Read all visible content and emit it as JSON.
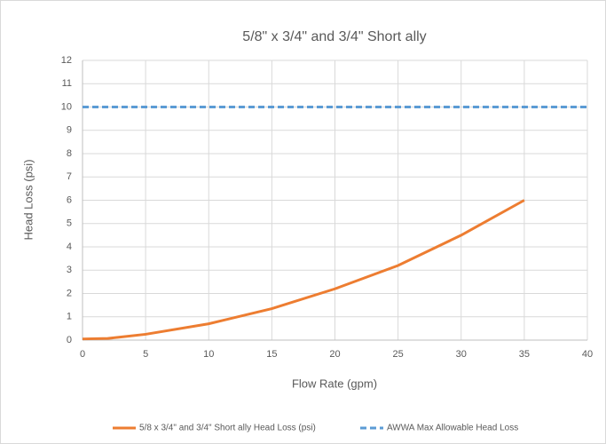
{
  "chart_data": {
    "type": "line",
    "title": "5/8\" x 3/4\" and 3/4\" Short ally",
    "x_label": "Flow Rate (gpm)",
    "y_label": "Head Loss (psi)",
    "xlim": [
      0,
      40
    ],
    "xticks": [
      0,
      5,
      10,
      15,
      20,
      25,
      30,
      35,
      40
    ],
    "ylim": [
      0,
      12
    ],
    "yticks": [
      0,
      1,
      2,
      3,
      4,
      5,
      6,
      7,
      8,
      9,
      10,
      11,
      12
    ],
    "grid": true,
    "legend": "bottom",
    "series": [
      {
        "name": "5/8 x 3/4\" and 3/4\" Short ally Head Loss (psi)",
        "color": "#ed7d31",
        "dash": false,
        "x": [
          0,
          2,
          5,
          10,
          15,
          20,
          25,
          30,
          35
        ],
        "values": [
          0.05,
          0.07,
          0.25,
          0.7,
          1.35,
          2.2,
          3.2,
          4.5,
          6.0
        ]
      },
      {
        "name": "AWWA Max Allowable Head Loss",
        "color": "#5b9bd5",
        "dash": true,
        "x": [
          0,
          40
        ],
        "values": [
          10,
          10
        ]
      }
    ]
  }
}
